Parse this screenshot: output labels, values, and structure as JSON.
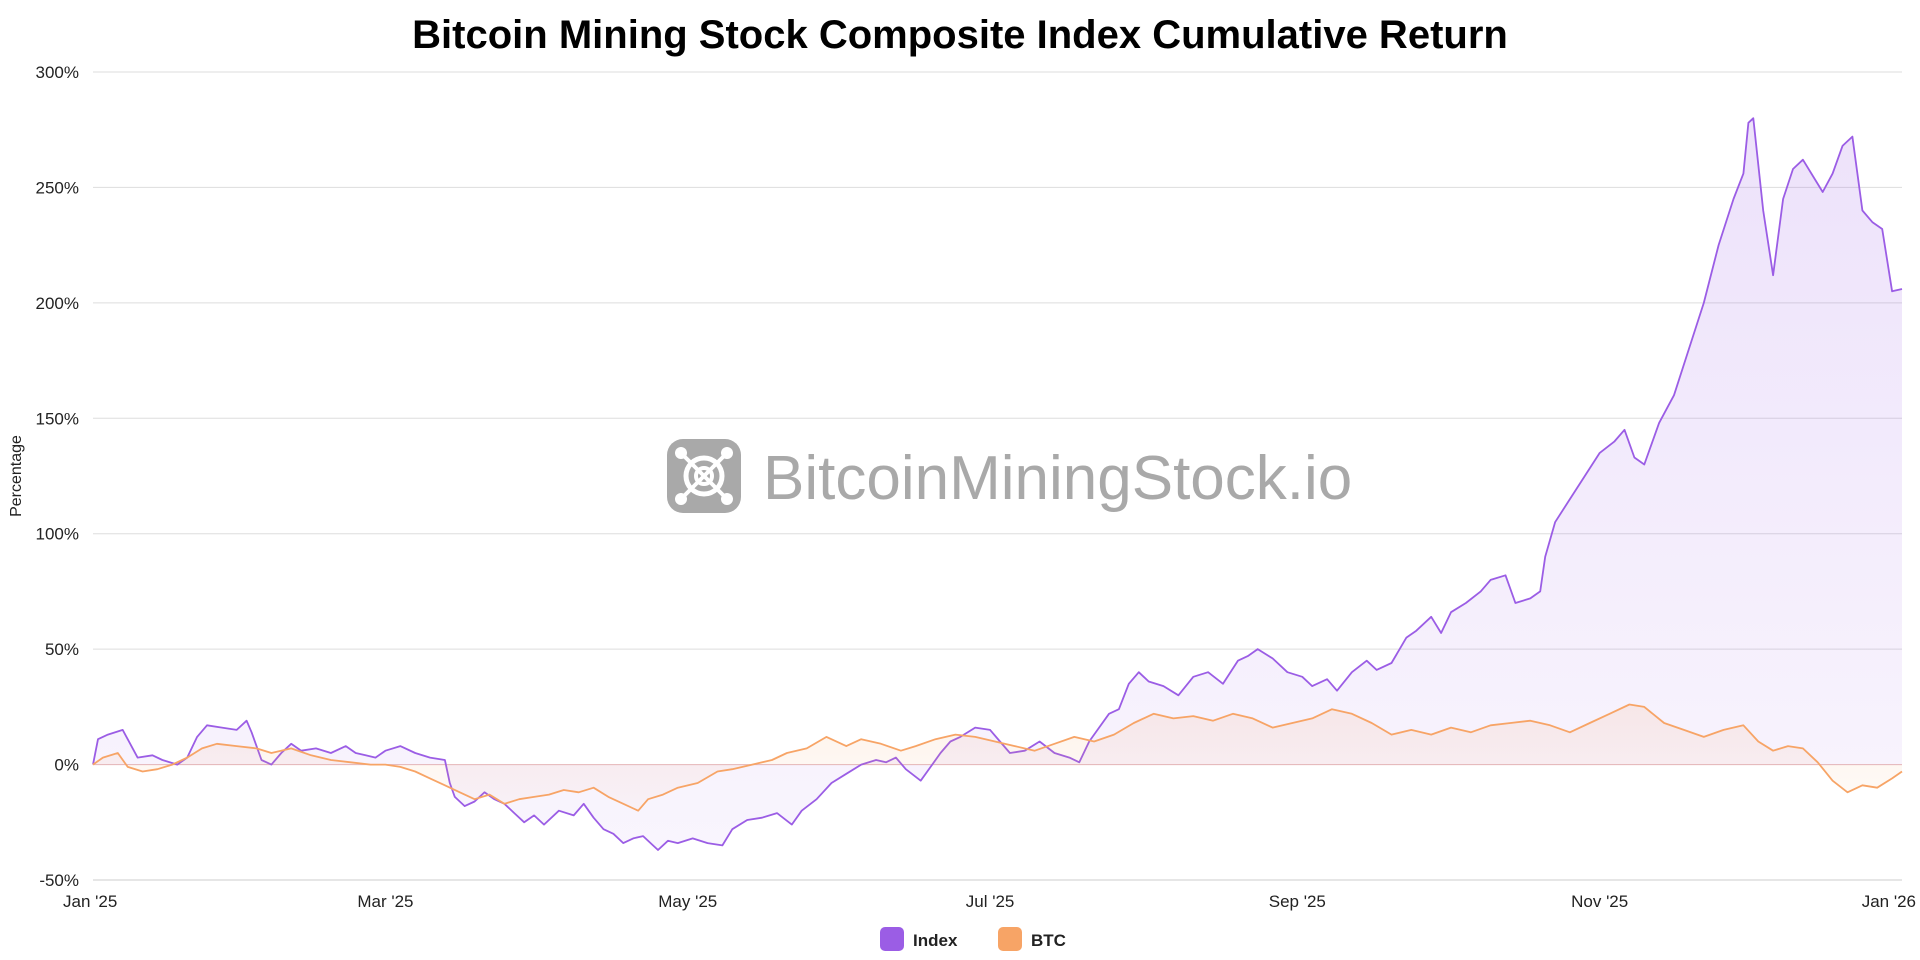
{
  "chart_data": {
    "type": "area",
    "title": "Bitcoin Mining Stock Composite Index Cumulative Return",
    "ylabel": "Percentage",
    "xlabel": "",
    "ylim": [
      -50,
      300
    ],
    "y_ticks": [
      -50,
      0,
      50,
      100,
      150,
      200,
      250,
      300
    ],
    "y_tick_labels": [
      "-50%",
      "0%",
      "50%",
      "100%",
      "150%",
      "200%",
      "250%",
      "300%"
    ],
    "x_range": [
      "2025-01-01",
      "2026-01-01"
    ],
    "x_ticks": [
      {
        "date": "2025-01-01",
        "label": "Jan '25"
      },
      {
        "date": "2025-03-01",
        "label": "Mar '25"
      },
      {
        "date": "2025-05-01",
        "label": "May '25"
      },
      {
        "date": "2025-07-01",
        "label": "Jul '25"
      },
      {
        "date": "2025-09-01",
        "label": "Sep '25"
      },
      {
        "date": "2025-11-01",
        "label": "Nov '25"
      },
      {
        "date": "2026-01-01",
        "label": "Jan '26"
      }
    ],
    "grid": "horizontal",
    "legend_position": "bottom-center",
    "watermark": "BitcoinMiningStock.io",
    "series": [
      {
        "name": "Index",
        "color": "#9b5de5",
        "points": [
          [
            "2025-01-01",
            0
          ],
          [
            "2025-01-02",
            11
          ],
          [
            "2025-01-04",
            13
          ],
          [
            "2025-01-07",
            15
          ],
          [
            "2025-01-08",
            11
          ],
          [
            "2025-01-10",
            3
          ],
          [
            "2025-01-13",
            4
          ],
          [
            "2025-01-15",
            2
          ],
          [
            "2025-01-18",
            0
          ],
          [
            "2025-01-20",
            3
          ],
          [
            "2025-01-22",
            12
          ],
          [
            "2025-01-24",
            17
          ],
          [
            "2025-01-27",
            16
          ],
          [
            "2025-01-30",
            15
          ],
          [
            "2025-02-01",
            19
          ],
          [
            "2025-02-02",
            14
          ],
          [
            "2025-02-04",
            2
          ],
          [
            "2025-02-06",
            0
          ],
          [
            "2025-02-08",
            5
          ],
          [
            "2025-02-10",
            9
          ],
          [
            "2025-02-12",
            6
          ],
          [
            "2025-02-15",
            7
          ],
          [
            "2025-02-18",
            5
          ],
          [
            "2025-02-21",
            8
          ],
          [
            "2025-02-23",
            5
          ],
          [
            "2025-02-25",
            4
          ],
          [
            "2025-02-27",
            3
          ],
          [
            "2025-03-01",
            6
          ],
          [
            "2025-03-04",
            8
          ],
          [
            "2025-03-07",
            5
          ],
          [
            "2025-03-10",
            3
          ],
          [
            "2025-03-13",
            2
          ],
          [
            "2025-03-14",
            -8
          ],
          [
            "2025-03-15",
            -14
          ],
          [
            "2025-03-17",
            -18
          ],
          [
            "2025-03-19",
            -16
          ],
          [
            "2025-03-21",
            -12
          ],
          [
            "2025-03-23",
            -15
          ],
          [
            "2025-03-25",
            -17
          ],
          [
            "2025-03-27",
            -21
          ],
          [
            "2025-03-29",
            -25
          ],
          [
            "2025-03-31",
            -22
          ],
          [
            "2025-04-02",
            -26
          ],
          [
            "2025-04-05",
            -20
          ],
          [
            "2025-04-08",
            -22
          ],
          [
            "2025-04-10",
            -17
          ],
          [
            "2025-04-12",
            -23
          ],
          [
            "2025-04-14",
            -28
          ],
          [
            "2025-04-16",
            -30
          ],
          [
            "2025-04-18",
            -34
          ],
          [
            "2025-04-20",
            -32
          ],
          [
            "2025-04-22",
            -31
          ],
          [
            "2025-04-24",
            -35
          ],
          [
            "2025-04-25",
            -37
          ],
          [
            "2025-04-27",
            -33
          ],
          [
            "2025-04-29",
            -34
          ],
          [
            "2025-05-02",
            -32
          ],
          [
            "2025-05-05",
            -34
          ],
          [
            "2025-05-08",
            -35
          ],
          [
            "2025-05-10",
            -28
          ],
          [
            "2025-05-13",
            -24
          ],
          [
            "2025-05-16",
            -23
          ],
          [
            "2025-05-19",
            -21
          ],
          [
            "2025-05-22",
            -26
          ],
          [
            "2025-05-24",
            -20
          ],
          [
            "2025-05-27",
            -15
          ],
          [
            "2025-05-30",
            -8
          ],
          [
            "2025-06-02",
            -4
          ],
          [
            "2025-06-05",
            0
          ],
          [
            "2025-06-08",
            2
          ],
          [
            "2025-06-10",
            1
          ],
          [
            "2025-06-12",
            3
          ],
          [
            "2025-06-14",
            -2
          ],
          [
            "2025-06-17",
            -7
          ],
          [
            "2025-06-19",
            -1
          ],
          [
            "2025-06-21",
            5
          ],
          [
            "2025-06-23",
            10
          ],
          [
            "2025-06-25",
            12
          ],
          [
            "2025-06-28",
            16
          ],
          [
            "2025-07-01",
            15
          ],
          [
            "2025-07-03",
            10
          ],
          [
            "2025-07-05",
            5
          ],
          [
            "2025-07-08",
            6
          ],
          [
            "2025-07-11",
            10
          ],
          [
            "2025-07-14",
            5
          ],
          [
            "2025-07-17",
            3
          ],
          [
            "2025-07-19",
            1
          ],
          [
            "2025-07-21",
            10
          ],
          [
            "2025-07-23",
            16
          ],
          [
            "2025-07-25",
            22
          ],
          [
            "2025-07-27",
            24
          ],
          [
            "2025-07-29",
            35
          ],
          [
            "2025-07-31",
            40
          ],
          [
            "2025-08-02",
            36
          ],
          [
            "2025-08-05",
            34
          ],
          [
            "2025-08-08",
            30
          ],
          [
            "2025-08-11",
            38
          ],
          [
            "2025-08-14",
            40
          ],
          [
            "2025-08-17",
            35
          ],
          [
            "2025-08-20",
            45
          ],
          [
            "2025-08-22",
            47
          ],
          [
            "2025-08-24",
            50
          ],
          [
            "2025-08-27",
            46
          ],
          [
            "2025-08-30",
            40
          ],
          [
            "2025-09-02",
            38
          ],
          [
            "2025-09-04",
            34
          ],
          [
            "2025-09-07",
            37
          ],
          [
            "2025-09-09",
            32
          ],
          [
            "2025-09-12",
            40
          ],
          [
            "2025-09-15",
            45
          ],
          [
            "2025-09-17",
            41
          ],
          [
            "2025-09-20",
            44
          ],
          [
            "2025-09-23",
            55
          ],
          [
            "2025-09-25",
            58
          ],
          [
            "2025-09-28",
            64
          ],
          [
            "2025-09-30",
            57
          ],
          [
            "2025-10-02",
            66
          ],
          [
            "2025-10-05",
            70
          ],
          [
            "2025-10-08",
            75
          ],
          [
            "2025-10-10",
            80
          ],
          [
            "2025-10-13",
            82
          ],
          [
            "2025-10-15",
            70
          ],
          [
            "2025-10-18",
            72
          ],
          [
            "2025-10-20",
            75
          ],
          [
            "2025-10-21",
            90
          ],
          [
            "2025-10-23",
            105
          ],
          [
            "2025-10-26",
            115
          ],
          [
            "2025-10-29",
            125
          ],
          [
            "2025-11-01",
            135
          ],
          [
            "2025-11-04",
            140
          ],
          [
            "2025-11-06",
            145
          ],
          [
            "2025-11-08",
            133
          ],
          [
            "2025-11-10",
            130
          ],
          [
            "2025-11-13",
            148
          ],
          [
            "2025-11-16",
            160
          ],
          [
            "2025-11-19",
            180
          ],
          [
            "2025-11-22",
            200
          ],
          [
            "2025-11-25",
            225
          ],
          [
            "2025-11-28",
            245
          ],
          [
            "2025-11-30",
            256
          ],
          [
            "2025-12-01",
            278
          ],
          [
            "2025-12-02",
            280
          ],
          [
            "2025-12-04",
            240
          ],
          [
            "2025-12-06",
            212
          ],
          [
            "2025-12-08",
            245
          ],
          [
            "2025-12-10",
            258
          ],
          [
            "2025-12-12",
            262
          ],
          [
            "2025-12-14",
            255
          ],
          [
            "2025-12-16",
            248
          ],
          [
            "2025-12-18",
            256
          ],
          [
            "2025-12-20",
            268
          ],
          [
            "2025-12-22",
            272
          ],
          [
            "2025-12-24",
            240
          ],
          [
            "2025-12-26",
            235
          ],
          [
            "2025-12-28",
            232
          ],
          [
            "2025-12-30",
            205
          ],
          [
            "2026-01-01",
            206
          ]
        ]
      },
      {
        "name": "BTC",
        "color": "#f7a466",
        "points": [
          [
            "2025-01-01",
            0
          ],
          [
            "2025-01-03",
            3
          ],
          [
            "2025-01-06",
            5
          ],
          [
            "2025-01-08",
            -1
          ],
          [
            "2025-01-11",
            -3
          ],
          [
            "2025-01-14",
            -2
          ],
          [
            "2025-01-17",
            0
          ],
          [
            "2025-01-20",
            3
          ],
          [
            "2025-01-23",
            7
          ],
          [
            "2025-01-26",
            9
          ],
          [
            "2025-01-30",
            8
          ],
          [
            "2025-02-03",
            7
          ],
          [
            "2025-02-06",
            5
          ],
          [
            "2025-02-10",
            7
          ],
          [
            "2025-02-14",
            4
          ],
          [
            "2025-02-18",
            2
          ],
          [
            "2025-02-22",
            1
          ],
          [
            "2025-02-26",
            0
          ],
          [
            "2025-03-01",
            0
          ],
          [
            "2025-03-04",
            -1
          ],
          [
            "2025-03-07",
            -3
          ],
          [
            "2025-03-10",
            -6
          ],
          [
            "2025-03-13",
            -9
          ],
          [
            "2025-03-16",
            -12
          ],
          [
            "2025-03-19",
            -15
          ],
          [
            "2025-03-22",
            -13
          ],
          [
            "2025-03-25",
            -17
          ],
          [
            "2025-03-28",
            -15
          ],
          [
            "2025-03-31",
            -14
          ],
          [
            "2025-04-03",
            -13
          ],
          [
            "2025-04-06",
            -11
          ],
          [
            "2025-04-09",
            -12
          ],
          [
            "2025-04-12",
            -10
          ],
          [
            "2025-04-15",
            -14
          ],
          [
            "2025-04-18",
            -17
          ],
          [
            "2025-04-21",
            -20
          ],
          [
            "2025-04-23",
            -15
          ],
          [
            "2025-04-26",
            -13
          ],
          [
            "2025-04-29",
            -10
          ],
          [
            "2025-05-03",
            -8
          ],
          [
            "2025-05-07",
            -3
          ],
          [
            "2025-05-10",
            -2
          ],
          [
            "2025-05-14",
            0
          ],
          [
            "2025-05-18",
            2
          ],
          [
            "2025-05-21",
            5
          ],
          [
            "2025-05-25",
            7
          ],
          [
            "2025-05-29",
            12
          ],
          [
            "2025-06-02",
            8
          ],
          [
            "2025-06-05",
            11
          ],
          [
            "2025-06-09",
            9
          ],
          [
            "2025-06-13",
            6
          ],
          [
            "2025-06-16",
            8
          ],
          [
            "2025-06-20",
            11
          ],
          [
            "2025-06-24",
            13
          ],
          [
            "2025-06-28",
            12
          ],
          [
            "2025-07-02",
            10
          ],
          [
            "2025-07-06",
            8
          ],
          [
            "2025-07-10",
            6
          ],
          [
            "2025-07-14",
            9
          ],
          [
            "2025-07-18",
            12
          ],
          [
            "2025-07-22",
            10
          ],
          [
            "2025-07-26",
            13
          ],
          [
            "2025-07-30",
            18
          ],
          [
            "2025-08-03",
            22
          ],
          [
            "2025-08-07",
            20
          ],
          [
            "2025-08-11",
            21
          ],
          [
            "2025-08-15",
            19
          ],
          [
            "2025-08-19",
            22
          ],
          [
            "2025-08-23",
            20
          ],
          [
            "2025-08-27",
            16
          ],
          [
            "2025-08-31",
            18
          ],
          [
            "2025-09-04",
            20
          ],
          [
            "2025-09-08",
            24
          ],
          [
            "2025-09-12",
            22
          ],
          [
            "2025-09-16",
            18
          ],
          [
            "2025-09-20",
            13
          ],
          [
            "2025-09-24",
            15
          ],
          [
            "2025-09-28",
            13
          ],
          [
            "2025-10-02",
            16
          ],
          [
            "2025-10-06",
            14
          ],
          [
            "2025-10-10",
            17
          ],
          [
            "2025-10-14",
            18
          ],
          [
            "2025-10-18",
            19
          ],
          [
            "2025-10-22",
            17
          ],
          [
            "2025-10-26",
            14
          ],
          [
            "2025-10-30",
            18
          ],
          [
            "2025-11-03",
            22
          ],
          [
            "2025-11-07",
            26
          ],
          [
            "2025-11-10",
            25
          ],
          [
            "2025-11-14",
            18
          ],
          [
            "2025-11-18",
            15
          ],
          [
            "2025-11-22",
            12
          ],
          [
            "2025-11-26",
            15
          ],
          [
            "2025-11-30",
            17
          ],
          [
            "2025-12-03",
            10
          ],
          [
            "2025-12-06",
            6
          ],
          [
            "2025-12-09",
            8
          ],
          [
            "2025-12-12",
            7
          ],
          [
            "2025-12-15",
            1
          ],
          [
            "2025-12-18",
            -7
          ],
          [
            "2025-12-21",
            -12
          ],
          [
            "2025-12-24",
            -9
          ],
          [
            "2025-12-27",
            -10
          ],
          [
            "2025-12-30",
            -6
          ],
          [
            "2026-01-01",
            -3
          ]
        ]
      }
    ]
  }
}
